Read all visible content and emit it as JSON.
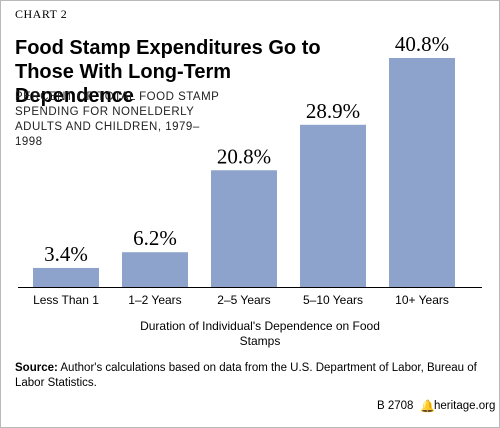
{
  "header": {
    "label": "CHART 2",
    "title": "Food Stamp Expenditures Go to Those With Long-Term Dependence",
    "subtitle": "PERCENT OF TOTAL FOOD STAMP SPENDING FOR NONELDERLY ADULTS AND CHILDREN, 1979–1998"
  },
  "chart_data": {
    "type": "bar",
    "title": "Food Stamp Expenditures Go to Those With Long-Term Dependence",
    "subtitle": "PERCENT OF TOTAL FOOD STAMP SPENDING FOR NONELDERLY ADULTS AND CHILDREN, 1979–1998",
    "categories": [
      "Less Than 1",
      "1–2 Years",
      "2–5 Years",
      "5–10 Years",
      "10+ Years"
    ],
    "values": [
      3.4,
      6.2,
      20.8,
      28.9,
      40.8
    ],
    "data_labels": [
      "3.4%",
      "6.2%",
      "20.8%",
      "28.9%",
      "40.8%"
    ],
    "xlabel": "Duration of Individual's Dependence on Food Stamps",
    "ylabel": "",
    "ylim": [
      0,
      40.8
    ],
    "grid": false,
    "colors": {
      "bar": "#8da3cc",
      "axis": "#000000"
    }
  },
  "source": {
    "label": "Source:",
    "text": "Author's calculations based on data from the U.S. Department of Labor, Bureau of Labor Statistics."
  },
  "footer": {
    "code": "B 2708",
    "bell_icon": "bell-icon",
    "site": "heritage.org"
  }
}
